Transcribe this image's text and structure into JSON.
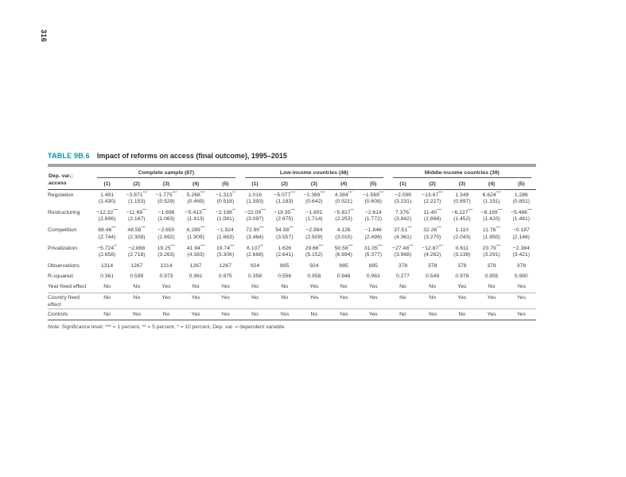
{
  "page_number": "316",
  "colors": {
    "accent_teal": "#0b95a5",
    "rule_dark": "#4a4a4a",
    "rule_gray": "#a5a5a5"
  },
  "table": {
    "label": "TABLE 9B.6",
    "title": "Impact of reforms on access (final outcome), 1995–2015",
    "dep_var_line1": "Dep. var.:",
    "dep_var_line2": "access",
    "groups": [
      {
        "label": "Complete sample (87)",
        "columns": [
          "(1)",
          "(2)",
          "(3)",
          "(4)",
          "(5)"
        ]
      },
      {
        "label": "Low-income countries (48)",
        "columns": [
          "(1)",
          "(2)",
          "(3)",
          "(4)",
          "(5)"
        ]
      },
      {
        "label": "Middle-income countries (39)",
        "columns": [
          "(1)",
          "(2)",
          "(3)",
          "(4)",
          "(5)"
        ]
      }
    ],
    "rows": [
      {
        "label": "Regulation",
        "coef": [
          "1.491",
          "−3.871***",
          "−1.775***",
          "5.268***",
          "−1.313**",
          "1.016",
          "−5.077***",
          "−2.369***",
          "4.384***",
          "−1.569***",
          "−2.099",
          "−13.67***",
          "1.349",
          "6.624***",
          "1.286"
        ],
        "se": [
          "(1.430)",
          "(1.153)",
          "(0.529)",
          "(0.469)",
          "(0.518)",
          "(1.393)",
          "(1.183)",
          "(0.642)",
          "(0.521)",
          "(0.608)",
          "(3.231)",
          "(2.227)",
          "(0.897)",
          "(1.191)",
          "(0.851)"
        ]
      },
      {
        "label": "Restructuring",
        "coef": [
          "−12.32***",
          "−11.69***",
          "−1.698",
          "−5.413***",
          "−2.198**",
          "−22.09***",
          "−19.30***",
          "−1.891",
          "−5.817**",
          "−2.614",
          "7.376*",
          "11.40***",
          "−6.127***",
          "−8.169***",
          "−5.486***"
        ],
        "se": [
          "(2.696)",
          "(2.167)",
          "(1.063)",
          "(1.413)",
          "(1.081)",
          "(3.097)",
          "(2.875)",
          "(1.714)",
          "(2.253)",
          "(1.772)",
          "(3.842)",
          "(2.868)",
          "(1.452)",
          "(1.420)",
          "(1.481)"
        ]
      },
      {
        "label": "Competition",
        "coef": [
          "68.46***",
          "48.58***",
          "−2.650",
          "6.289***",
          "−1.924",
          "72.90***",
          "54.98***",
          "−2.984",
          "4.126",
          "−1.846",
          "37.51***",
          "32.26***",
          "1.110",
          "11.76***",
          "−0.187"
        ],
        "se": [
          "(2.744)",
          "(2.308)",
          "(1.692)",
          "(1.909)",
          "(1.663)",
          "(3.464)",
          "(3.557)",
          "(2.509)",
          "(3.015)",
          "(2.499)",
          "(4.361)",
          "(3.270)",
          "(2.043)",
          "(1.950)",
          "(2.146)"
        ]
      },
      {
        "label": "Privatization",
        "coef": [
          "−5.724**",
          "−2.868",
          "19.25***",
          "41.94***",
          "19.74***",
          "6.107**",
          "1.626",
          "29.66***",
          "50.58***",
          "31.05***",
          "−27.48***",
          "−12.87***",
          "0.611",
          "20.79***",
          "−2.384"
        ],
        "se": [
          "(2.658)",
          "(2.718)",
          "(3.263)",
          "(4.383)",
          "(3.306)",
          "(2.668)",
          "(2.641)",
          "(5.152)",
          "(6.694)",
          "(5.377)",
          "(3.968)",
          "(4.262)",
          "(3.138)",
          "(3.291)",
          "(3.421)"
        ]
      },
      {
        "label": "Observations",
        "coef": [
          "1314",
          "1267",
          "1314",
          "1267",
          "1267",
          "924",
          "885",
          "924",
          "885",
          "885",
          "378",
          "378",
          "378",
          "378",
          "378"
        ]
      },
      {
        "label": "R-squared",
        "coef": [
          "0.361",
          "0.599",
          "0.973",
          "0.961",
          "0.975",
          "0.358",
          "0.558",
          "0.958",
          "0.948",
          "0.963",
          "0.277",
          "0.549",
          "0.978",
          "0.955",
          "0.980"
        ]
      },
      {
        "label": "Year fixed effect",
        "coef": [
          "No",
          "No",
          "Yes",
          "No",
          "Yes",
          "No",
          "No",
          "Yes",
          "No",
          "Yes",
          "No",
          "No",
          "Yes",
          "No",
          "Yes"
        ]
      },
      {
        "label": "Country fixed effect",
        "rule_above": true,
        "coef": [
          "No",
          "No",
          "Yes",
          "Yes",
          "Yes",
          "No",
          "No",
          "Yes",
          "Yes",
          "Yes",
          "No",
          "No",
          "Yes",
          "Yes",
          "Yes"
        ]
      },
      {
        "label": "Controls",
        "rule_above": true,
        "coef": [
          "No",
          "Yes",
          "No",
          "Yes",
          "Yes",
          "No",
          "Yes",
          "No",
          "Yes",
          "Yes",
          "No",
          "Yes",
          "No",
          "Yes",
          "Yes"
        ]
      }
    ],
    "note_label": "Note:",
    "note_text": " Significance level: *** = 1 percent, ** = 5 percent, * = 10 percent, Dep. var. = dependent variable."
  }
}
